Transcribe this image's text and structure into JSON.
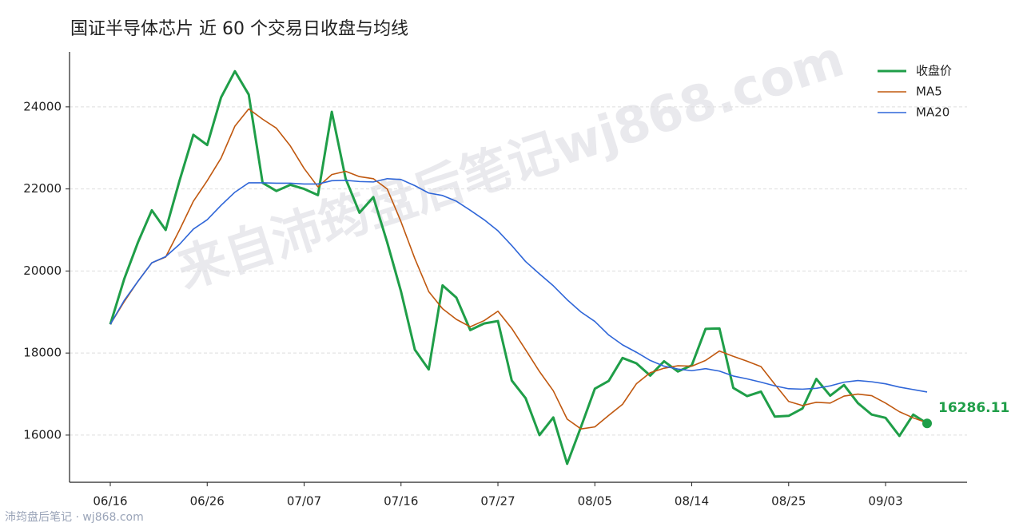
{
  "chart_data": {
    "type": "line",
    "title": "国证半导体芯片 近 60 个交易日收盘与均线",
    "watermark": "来自沛筠盘后笔记wj868.com",
    "footer": "沛筠盘后笔记 · wj868.com",
    "categories": [
      "06/16",
      null,
      null,
      null,
      null,
      null,
      null,
      "06/26",
      null,
      null,
      null,
      null,
      null,
      null,
      "07/07",
      null,
      null,
      null,
      null,
      null,
      null,
      "07/16",
      null,
      null,
      null,
      null,
      null,
      null,
      "07/27",
      null,
      null,
      null,
      null,
      null,
      null,
      "08/05",
      null,
      null,
      null,
      null,
      null,
      null,
      "08/14",
      null,
      null,
      null,
      null,
      null,
      null,
      "08/25",
      null,
      null,
      null,
      null,
      null,
      null,
      "09/03",
      null,
      null,
      null
    ],
    "series": [
      {
        "name": "收盘价",
        "color": "#1f9e48",
        "width": 3,
        "values": [
          18700,
          19800,
          20700,
          21480,
          21000,
          22200,
          23320,
          23070,
          24230,
          24870,
          24300,
          22150,
          21950,
          22100,
          22000,
          21850,
          23880,
          22250,
          21420,
          21800,
          20700,
          19500,
          18080,
          17600,
          19650,
          19350,
          18560,
          18720,
          18780,
          17330,
          16900,
          16000,
          16430,
          15300,
          16200,
          17130,
          17320,
          17880,
          17750,
          17450,
          17800,
          17550,
          17700,
          18590,
          18600,
          17150,
          16950,
          17060,
          16450,
          16470,
          16650,
          17370,
          16960,
          17220,
          16780,
          16500,
          16420,
          15980,
          16500,
          16286.11
        ]
      },
      {
        "name": "MA5",
        "color": "#c0580f",
        "width": 1.6,
        "values": [
          18700,
          19250,
          19750,
          20200,
          20340,
          21000,
          21700,
          22200,
          22750,
          23530,
          23950,
          23700,
          23480,
          23050,
          22500,
          22050,
          22350,
          22430,
          22300,
          22250,
          22000,
          21200,
          20300,
          19500,
          19080,
          18820,
          18640,
          18790,
          19020,
          18600,
          18080,
          17550,
          17080,
          16390,
          16150,
          16200,
          16480,
          16750,
          17250,
          17520,
          17630,
          17690,
          17680,
          17820,
          18050,
          17920,
          17800,
          17670,
          17240,
          16820,
          16720,
          16800,
          16780,
          16950,
          17000,
          16960,
          16780,
          16570,
          16420,
          16300
        ]
      },
      {
        "name": "MA20",
        "color": "#2f66d8",
        "width": 1.6,
        "values": [
          18700,
          19280,
          19750,
          20200,
          20350,
          20650,
          21020,
          21250,
          21600,
          21920,
          22150,
          22150,
          22140,
          22140,
          22120,
          22120,
          22200,
          22210,
          22180,
          22170,
          22250,
          22230,
          22080,
          21900,
          21840,
          21700,
          21480,
          21250,
          20980,
          20620,
          20230,
          19930,
          19640,
          19300,
          19000,
          18770,
          18440,
          18200,
          18020,
          17820,
          17680,
          17610,
          17570,
          17620,
          17560,
          17440,
          17370,
          17290,
          17200,
          17130,
          17120,
          17140,
          17200,
          17290,
          17330,
          17300,
          17250,
          17170,
          17110,
          17050
        ]
      }
    ],
    "ylim": [
      14850,
      25340
    ],
    "yticks": [
      16000,
      18000,
      20000,
      22000,
      24000
    ],
    "grid": true,
    "legend": "upper right"
  }
}
